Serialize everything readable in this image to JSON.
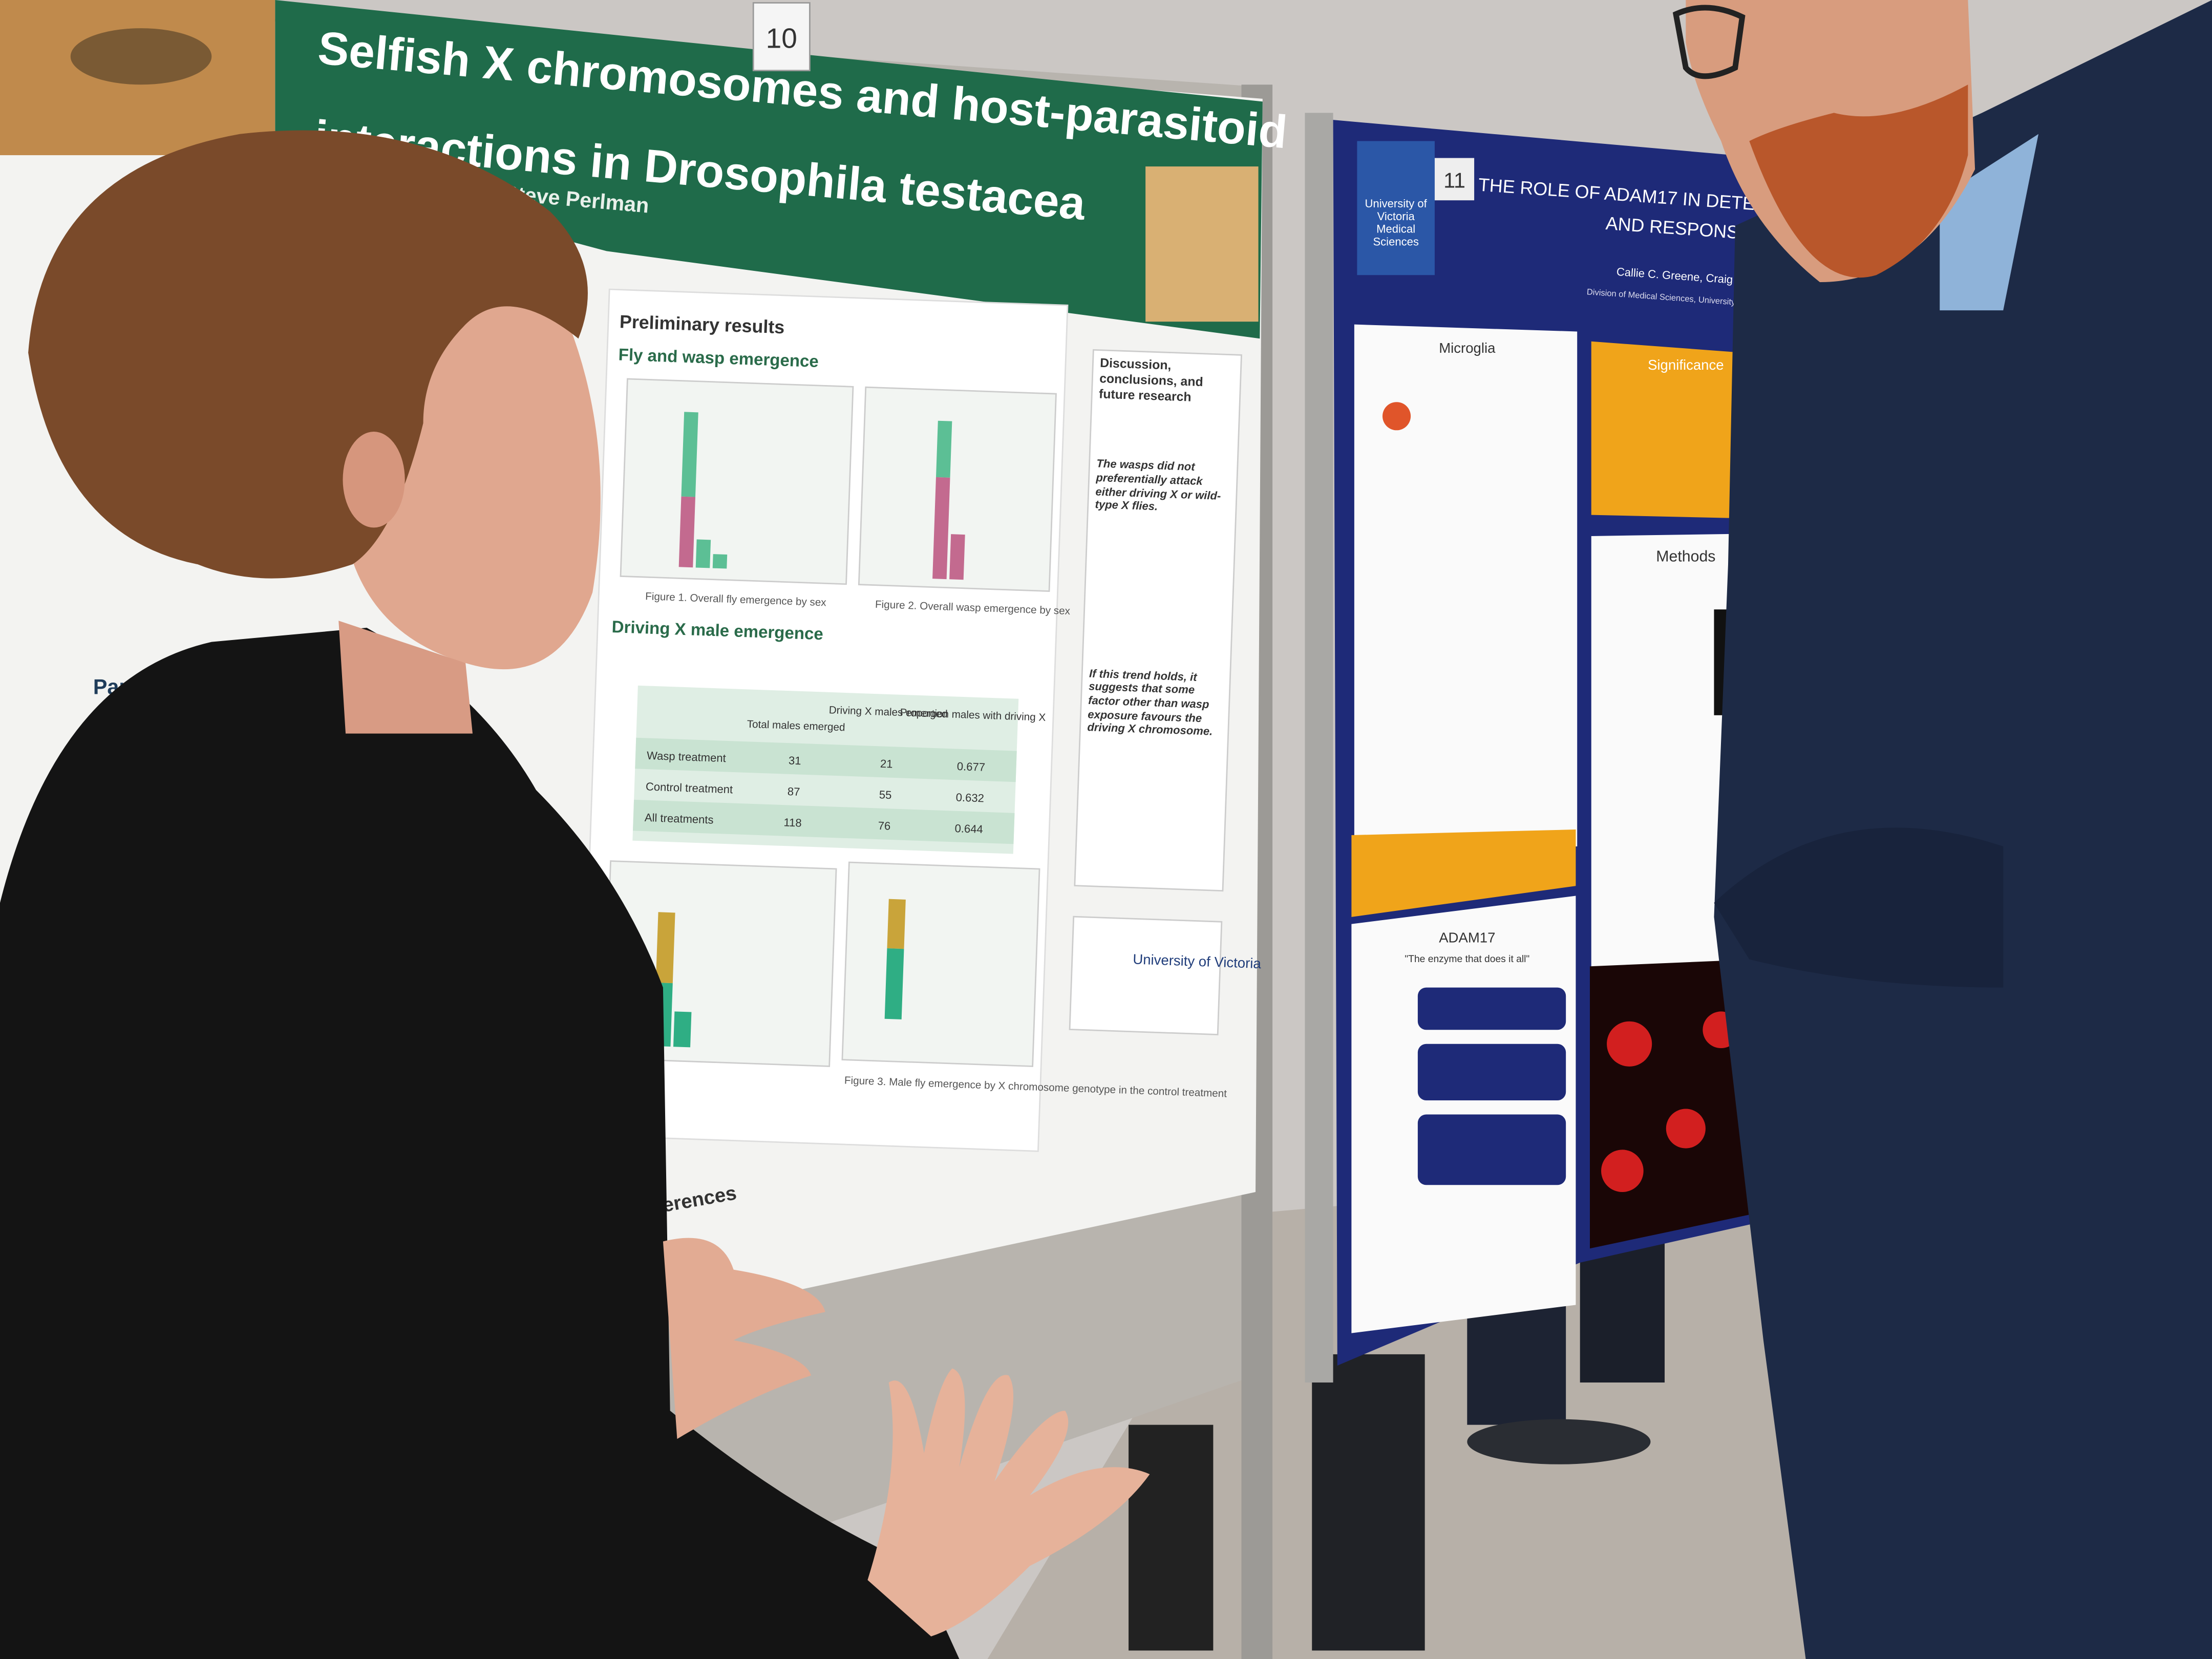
{
  "poster_left": {
    "number": "10",
    "title_line1": "Selfish X chromosomes and host-parasitoid",
    "title_line2": "interactions in Drosophila testacea",
    "author": "Steve Perlman",
    "preliminary": "Preliminary results",
    "section1": "Fly and wasp emergence",
    "figure1": "Figure 1. Overall fly emergence by sex",
    "figure2": "Figure 2. Overall wasp emergence by sex",
    "section2": "Driving X male emergence",
    "table": {
      "header": [
        "Total males emerged",
        "Driving X males emerged",
        "Proportion males with driving X"
      ],
      "rows": [
        [
          "Wasp treatment",
          "31",
          "21",
          "0.677"
        ],
        [
          "Control treatment",
          "87",
          "55",
          "0.632"
        ],
        [
          "All treatments",
          "118",
          "76",
          "0.644"
        ]
      ]
    },
    "figure3": "Figure 3. Male fly emergence by X chromosome genotype in the control treatment",
    "discussion_title": "Discussion, conclusions, and future research",
    "discussion_point1": "The wasps did not preferentially attack either driving X or wild-type X flies.",
    "discussion_point2": "If this trend holds, it suggests that some factor other than wasp exposure favours the driving X chromosome.",
    "university": "University of Victoria",
    "side_heading": "Parasit",
    "references": "ferences"
  },
  "poster_right": {
    "number": "11",
    "title_line1": "THE ROLE OF ADAM17 IN DETERMINING MICROGL",
    "title_line2": "AND RESPONSE TO STROKE",
    "authors": "Callie C. Greene, Craig E. Brown",
    "affiliation": "Division of Medical Sciences, University of Victoria, BC",
    "logo": "University of Victoria Medical Sciences",
    "microglia": "Microglia",
    "significance": "Significance",
    "methods": "Methods",
    "adam17": "ADAM17",
    "adam17_subtitle": "\"The enzyme that does it all\""
  }
}
